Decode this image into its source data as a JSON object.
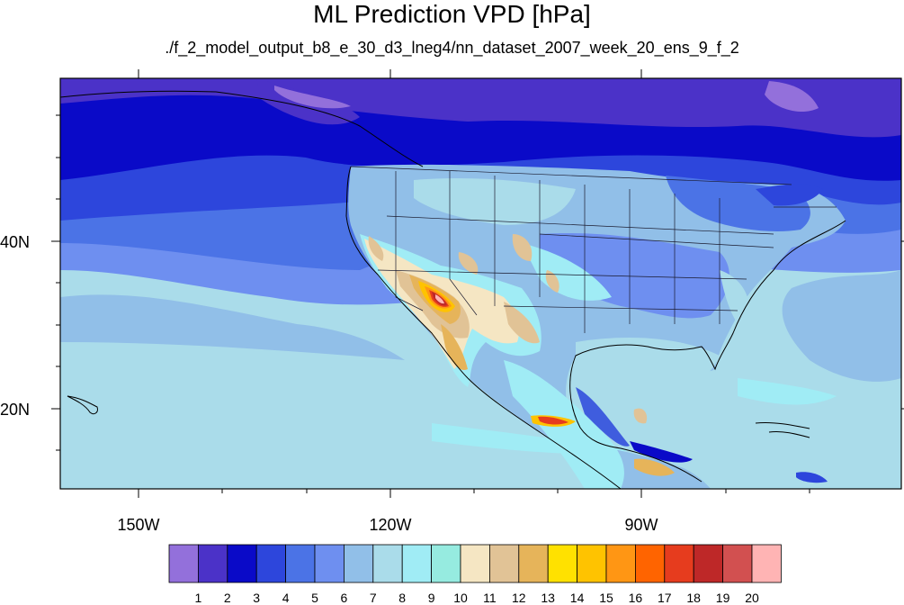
{
  "figure": {
    "title": "ML Prediction VPD [hPa]",
    "subtitle": "./f_2_model_output_b8_e_30_d3_lneg4/nn_dataset_2007_week_20_ens_9_f_2"
  },
  "axes": {
    "lat_labels": [
      "40N",
      "20N"
    ],
    "lon_labels": [
      "150W",
      "120W",
      "90W"
    ]
  },
  "colorbar": {
    "levels": [
      "1",
      "2",
      "3",
      "4",
      "5",
      "6",
      "7",
      "8",
      "9",
      "10",
      "11",
      "12",
      "13",
      "14",
      "15",
      "16",
      "17",
      "18",
      "19",
      "20"
    ],
    "colors": [
      "#9370db",
      "#4b32c8",
      "#0a0ac8",
      "#2d46dc",
      "#4b73e6",
      "#6e8ff0",
      "#91bfe8",
      "#aadcea",
      "#a0ecf5",
      "#96ebe0",
      "#f5e6c3",
      "#e1c396",
      "#e6b45a",
      "#ffe100",
      "#ffc300",
      "#ff9614",
      "#ff6400",
      "#e63c1e",
      "#be2828",
      "#d25050",
      "#ffb4b4"
    ]
  }
}
